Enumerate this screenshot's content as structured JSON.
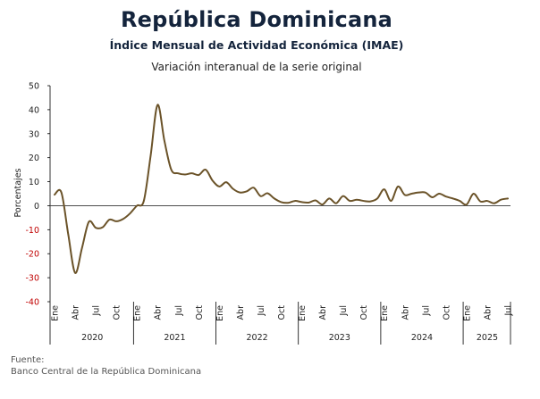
{
  "chart_data": {
    "type": "line",
    "title": "República Dominicana",
    "subtitle": "Índice Mensual de Actividad Económica (IMAE)",
    "subtitle2": "Variación interanual de la serie original",
    "ylabel": "Porcentajes",
    "ylim": [
      -40,
      50
    ],
    "yticks": [
      50,
      40,
      30,
      20,
      10,
      0,
      -10,
      -20,
      -30,
      -40
    ],
    "month_ticks": [
      "Ene",
      "Abr",
      "Jul",
      "Oct"
    ],
    "years": [
      "2020",
      "2021",
      "2022",
      "2023",
      "2024",
      "2025"
    ],
    "x_start": "Ene 2020",
    "x_end": "Jul 2025",
    "series": [
      {
        "color": "#6b5329",
        "values": [
          4.6,
          5.5,
          -12.0,
          -28.0,
          -17.6,
          -6.7,
          -9.2,
          -9.0,
          -5.8,
          -6.5,
          -5.5,
          -3.2,
          0.0,
          2.0,
          21.0,
          42.0,
          27.0,
          15.0,
          13.5,
          13.0,
          13.5,
          12.8,
          15.0,
          10.5,
          8.0,
          9.8,
          7.0,
          5.5,
          6.0,
          7.5,
          4.0,
          5.2,
          3.0,
          1.5,
          1.2,
          2.0,
          1.5,
          1.3,
          2.2,
          0.5,
          3.0,
          1.0,
          4.0,
          2.0,
          2.5,
          2.0,
          1.8,
          3.0,
          6.8,
          2.0,
          8.0,
          4.5,
          5.0,
          5.5,
          5.5,
          3.5,
          5.0,
          3.8,
          3.0,
          2.0,
          0.5,
          5.0,
          1.8,
          2.0,
          1.0,
          2.5,
          3.0
        ]
      }
    ]
  },
  "source": {
    "label": "Fuente:",
    "text": "Banco Central de la República Dominicana"
  }
}
